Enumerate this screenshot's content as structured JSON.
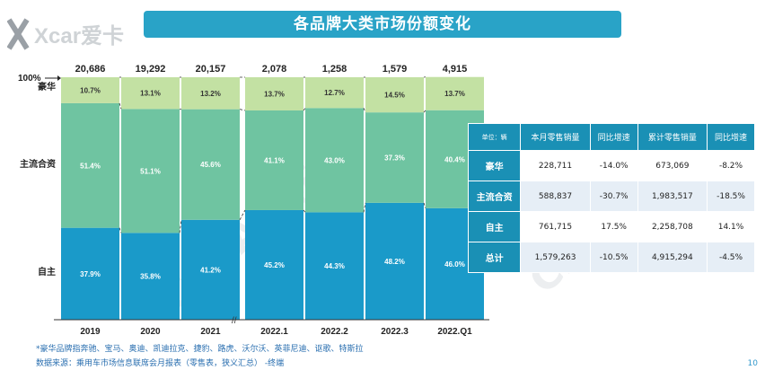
{
  "title": "各品牌大类市场份额变化",
  "logo_text": "Xcar爱卡",
  "watermark": "CPCA乘联会",
  "pointer_label": "100%",
  "break_mark": "//",
  "colors": {
    "luxury": "#c3e1a3",
    "jv": "#6fc4a1",
    "domestic": "#1a9ac9",
    "title": "#29a3c7",
    "table_head": "#1a90b5"
  },
  "chart_data": {
    "type": "bar",
    "stacked": true,
    "normalized": true,
    "categories": [
      "2019",
      "2020",
      "2021",
      "2022.1",
      "2022.2",
      "2022.3",
      "2022.Q1"
    ],
    "totals": [
      "20,686",
      "19,292",
      "20,157",
      "2,078",
      "1,258",
      "1,579",
      "4,915"
    ],
    "series": [
      {
        "name": "自主",
        "values": [
          37.9,
          35.8,
          41.2,
          45.2,
          44.3,
          48.2,
          46.0
        ],
        "labels": [
          "37.9%",
          "35.8%",
          "41.2%",
          "45.2%",
          "44.3%",
          "48.2%",
          "46.0%"
        ]
      },
      {
        "name": "主流合资",
        "values": [
          51.4,
          51.1,
          45.6,
          41.1,
          43.0,
          37.3,
          40.4
        ],
        "labels": [
          "51.4%",
          "51.1%",
          "45.6%",
          "41.1%",
          "43.0%",
          "37.3%",
          "40.4%"
        ]
      },
      {
        "name": "豪华",
        "values": [
          10.7,
          13.1,
          13.2,
          13.7,
          12.7,
          14.5,
          13.7
        ],
        "labels": [
          "10.7%",
          "13.1%",
          "13.2%",
          "13.7%",
          "12.7%",
          "14.5%",
          "13.7%"
        ]
      }
    ],
    "ylim": [
      0,
      100
    ]
  },
  "table": {
    "unit": "单位：辆",
    "headers": [
      "本月零售销量",
      "同比增速",
      "累计零售销量",
      "同比增速"
    ],
    "rows": [
      {
        "label": "豪华",
        "cells": [
          "228,711",
          "-14.0%",
          "673,069",
          "-8.2%"
        ]
      },
      {
        "label": "主流合资",
        "cells": [
          "588,837",
          "-30.7%",
          "1,983,517",
          "-18.5%"
        ]
      },
      {
        "label": "自主",
        "cells": [
          "761,715",
          "17.5%",
          "2,258,708",
          "14.1%"
        ]
      },
      {
        "label": "总计",
        "cells": [
          "1,579,263",
          "-10.5%",
          "4,915,294",
          "-4.5%"
        ]
      }
    ]
  },
  "footnotes": {
    "note1": "*豪华品牌指奔驰、宝马、奥迪、凯迪拉克、捷豹、路虎、沃尔沃、英菲尼迪、讴歌、特斯拉",
    "note2": "数据来源：乘用车市场信息联席会月报表（零售表，狭义汇总） -终端"
  },
  "page_number": "10"
}
